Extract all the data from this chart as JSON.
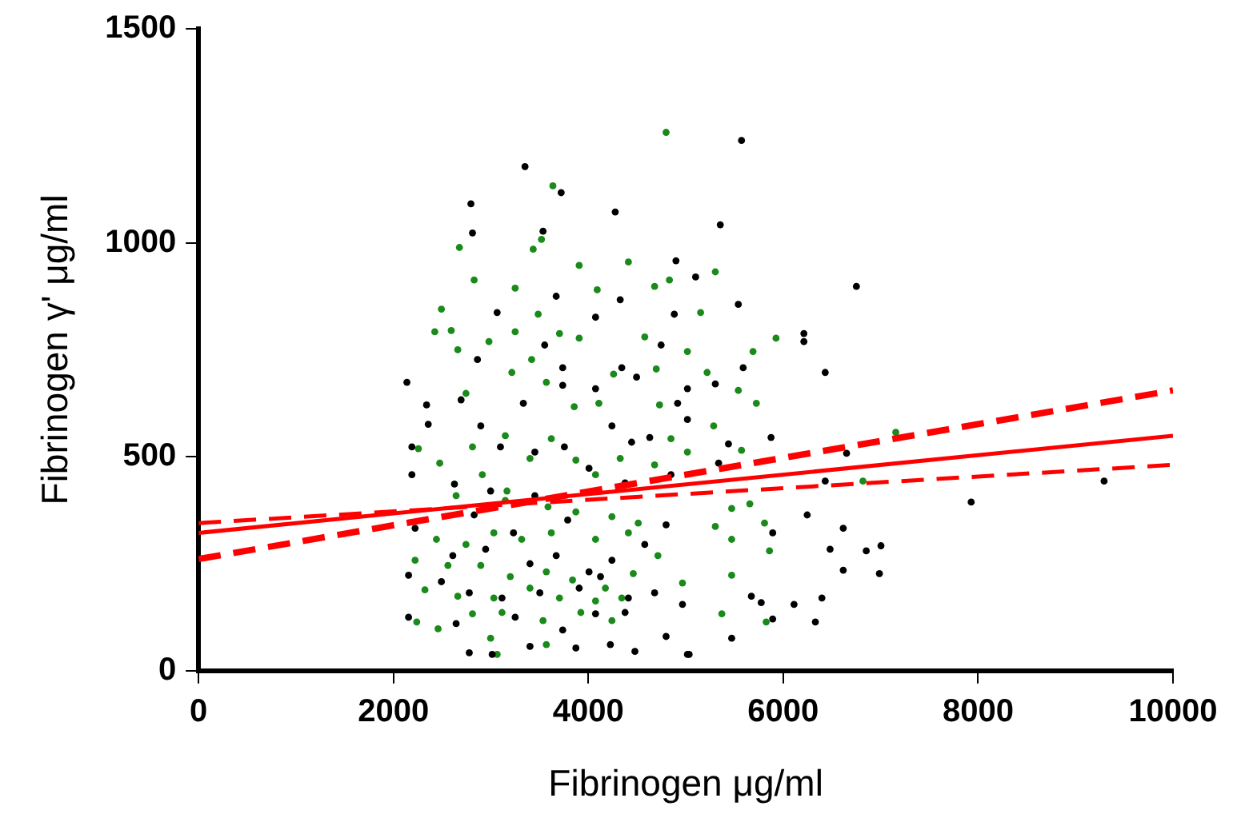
{
  "chart_data": {
    "type": "scatter",
    "xlabel": "Fibrinogen μg/ml",
    "ylabel": "Fibrinogen γ' μg/ml",
    "xlim": [
      0,
      10000
    ],
    "xticks": [
      0,
      2000,
      4000,
      6000,
      8000,
      10000
    ],
    "ylim": [
      0,
      1500
    ],
    "yticks": [
      0,
      500,
      1000,
      1500
    ],
    "grid": false,
    "legend": false,
    "marker": "circle",
    "series": [
      {
        "color": "#000000",
        "x": [
          5572,
          5354,
          6751,
          6212,
          6212,
          6431,
          5539,
          5875,
          6650,
          6431,
          7929,
          9293,
          6246,
          6616,
          6481,
          6852,
          7003,
          6616,
          6987,
          6397,
          6111,
          5673,
          5774,
          5892,
          6330,
          5471,
          5034,
          5892,
          5589,
          5303,
          5101,
          4899,
          4882,
          5337,
          5438,
          3350,
          3721,
          2795,
          2811,
          3535,
          4276,
          2138,
          2340,
          2357,
          2189,
          2189,
          3064,
          3670,
          4327,
          4074,
          2862,
          3737,
          3552,
          4343,
          4495,
          4747,
          5017,
          4916,
          5017,
          2694,
          3333,
          3737,
          4074,
          4242,
          4444,
          4630,
          2896,
          3098,
          3451,
          3754,
          4007,
          2626,
          2997,
          3451,
          4377,
          4848,
          2222,
          2609,
          2946,
          3401,
          3670,
          4007,
          4242,
          4579,
          4798,
          2155,
          2492,
          2778,
          3114,
          3502,
          3906,
          4125,
          4411,
          4680,
          4966,
          2155,
          2643,
          3249,
          3737,
          4074,
          4377,
          4798,
          2778,
          3013,
          3401,
          3872,
          4226,
          4478,
          5017,
          3232,
          3788,
          2828
        ],
        "values": [
          1239,
          1042,
          898,
          788,
          769,
          697,
          856,
          545,
          508,
          443,
          394,
          443,
          364,
          333,
          284,
          280,
          292,
          235,
          227,
          170,
          155,
          174,
          159,
          121,
          114,
          76,
          38,
          322,
          708,
          670,
          920,
          958,
          833,
          485,
          530,
          1178,
          1117,
          1091,
          1023,
          1027,
          1072,
          674,
          621,
          576,
          523,
          458,
          837,
          875,
          867,
          826,
          727,
          708,
          761,
          708,
          686,
          761,
          659,
          625,
          587,
          633,
          625,
          667,
          659,
          572,
          534,
          545,
          572,
          523,
          511,
          523,
          473,
          436,
          420,
          409,
          439,
          458,
          333,
          269,
          284,
          250,
          269,
          231,
          258,
          295,
          341,
          223,
          208,
          182,
          170,
          182,
          193,
          220,
          170,
          182,
          155,
          125,
          110,
          125,
          95,
          133,
          136,
          80,
          42,
          38,
          57,
          53,
          61,
          45,
          38,
          322,
          352,
          364
        ]
      },
      {
        "color": "#1a8a1a",
        "x": [
          4798,
          5303,
          5152,
          5926,
          5690,
          5724,
          5539,
          5286,
          7155,
          5572,
          5471,
          5657,
          5808,
          5859,
          5471,
          5303,
          5471,
          5370,
          5825,
          6818,
          5219,
          5017,
          3636,
          2677,
          2828,
          3519,
          3434,
          3906,
          4411,
          4832,
          4680,
          3249,
          2492,
          2424,
          2593,
          2660,
          2980,
          3249,
          3418,
          3485,
          3704,
          3906,
          4091,
          4259,
          4579,
          4697,
          2744,
          3215,
          3569,
          3855,
          4108,
          4731,
          4848,
          5017,
          2256,
          2475,
          2811,
          3148,
          3401,
          3620,
          3872,
          4074,
          4327,
          4680,
          2643,
          2912,
          3148,
          3586,
          3872,
          4242,
          4512,
          2441,
          2744,
          3030,
          3316,
          3620,
          4074,
          4411,
          4714,
          2222,
          2559,
          2896,
          3199,
          3569,
          3838,
          4175,
          4461,
          2323,
          2660,
          3030,
          3401,
          3704,
          4074,
          4343,
          4966,
          2239,
          2458,
          2811,
          3114,
          3535,
          3923,
          4242,
          2997,
          3064,
          3569,
          3165
        ],
        "values": [
          1258,
          932,
          837,
          777,
          746,
          625,
          655,
          572,
          557,
          515,
          379,
          390,
          345,
          280,
          307,
          337,
          223,
          133,
          114,
          443,
          697,
          746,
          1133,
          989,
          913,
          1008,
          985,
          947,
          955,
          913,
          898,
          894,
          845,
          792,
          795,
          750,
          769,
          792,
          727,
          833,
          788,
          777,
          890,
          693,
          780,
          705,
          648,
          697,
          674,
          617,
          625,
          621,
          542,
          511,
          519,
          485,
          523,
          549,
          496,
          542,
          492,
          458,
          496,
          481,
          409,
          458,
          398,
          383,
          371,
          360,
          345,
          307,
          295,
          322,
          307,
          322,
          307,
          322,
          269,
          258,
          246,
          246,
          220,
          231,
          212,
          193,
          227,
          189,
          174,
          170,
          193,
          170,
          163,
          170,
          205,
          114,
          98,
          133,
          136,
          117,
          136,
          117,
          76,
          38,
          61,
          420
        ]
      },
      {
        "type": "line",
        "color": "#ff0000",
        "line_style": "solid",
        "marker": "none",
        "x": [
          0,
          10000
        ],
        "values": [
          322,
          549
        ]
      },
      {
        "type": "line",
        "color": "#ff0000",
        "line_style": "dashed",
        "marker": "none",
        "x": [
          0,
          10000
        ],
        "values": [
          345,
          481
        ]
      },
      {
        "type": "line",
        "color": "#ff0000",
        "line_style": "dashed",
        "marker": "none",
        "x": [
          0,
          10000
        ],
        "values": [
          261,
          655
        ]
      }
    ]
  }
}
